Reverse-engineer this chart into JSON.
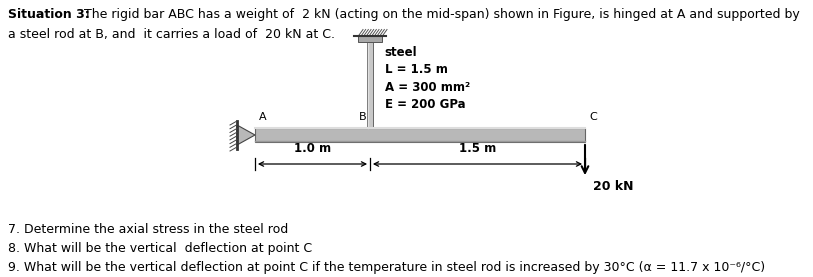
{
  "title_bold": "Situation 3:",
  "title_rest": " The rigid bar ABC has a weight of  2 kN (acting on the mid-span) shown in Figure, is hinged at A and supported by",
  "title_line2": "a steel rod at B, and  it carries a load of  20 kN at C.",
  "fig_width": 8.13,
  "fig_height": 2.77,
  "dpi": 100,
  "label_steel": "steel",
  "label_L": "L = 1.5 m",
  "label_A": "A = 300 mm²",
  "label_E": "E = 200 GPa",
  "q7": "7. Determine the axial stress in the steel rod",
  "q8": "8. What will be the vertical  deflection at point C",
  "q9": "9. What will be the vertical deflection at point C if the temperature in steel rod is increased by 30°C (α = 11.7 x 10⁻⁶/°C)",
  "bg_color": "#ffffff",
  "bar_color": "#b8b8b8",
  "text_color": "#000000"
}
